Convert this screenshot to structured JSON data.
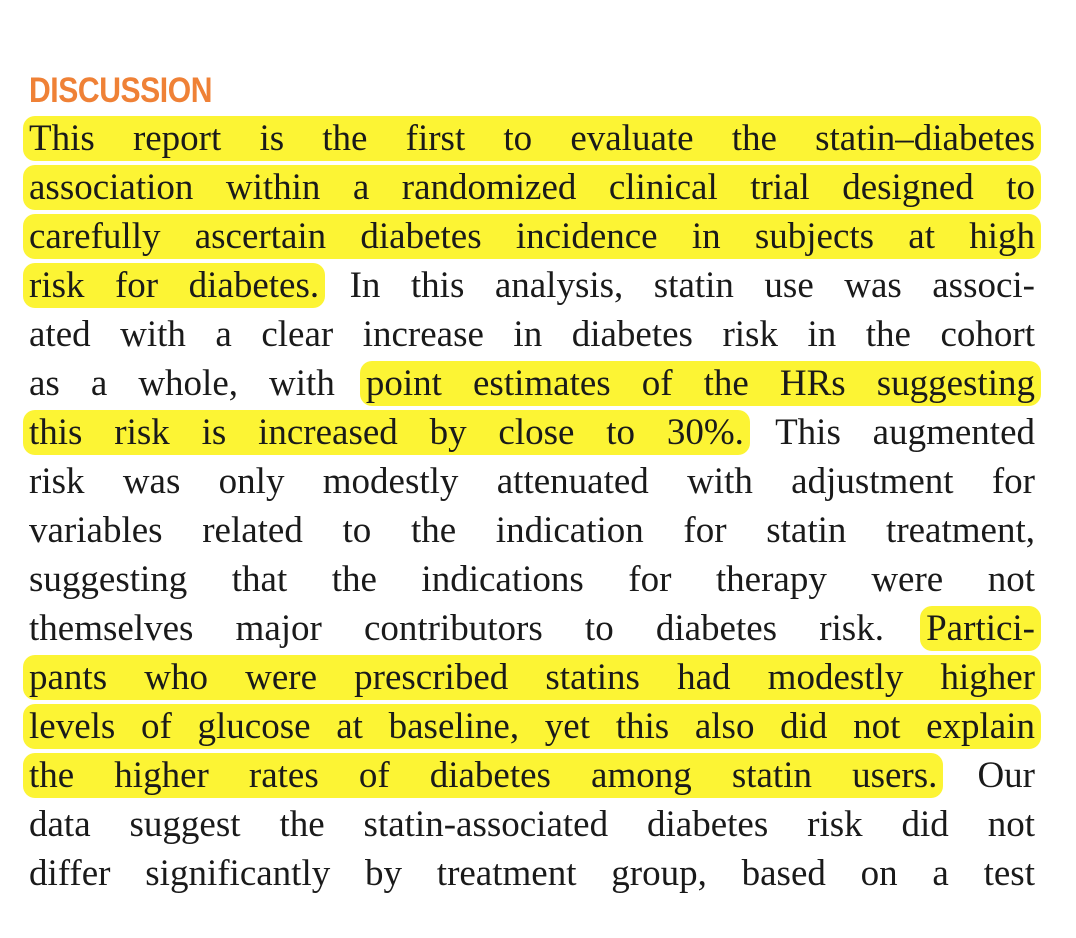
{
  "section": {
    "heading": "DISCUSSION"
  },
  "lines": [
    [
      {
        "t": "This report is the first to evaluate the statin–diabetes",
        "h": true
      }
    ],
    [
      {
        "t": "association within a randomized clinical trial designed to",
        "h": true
      }
    ],
    [
      {
        "t": "carefully ascertain diabetes incidence in subjects at high",
        "h": true
      }
    ],
    [
      {
        "t": "risk for diabetes.",
        "h": true
      },
      {
        "t": " In this analysis, statin use was associ-",
        "h": false
      }
    ],
    [
      {
        "t": "ated with a clear increase in diabetes risk in the cohort",
        "h": false
      }
    ],
    [
      {
        "t": "as a whole, with ",
        "h": false
      },
      {
        "t": "point estimates of the HRs suggesting",
        "h": true
      }
    ],
    [
      {
        "t": "this risk is increased by close to 30%.",
        "h": true
      },
      {
        "t": " This augmented",
        "h": false
      }
    ],
    [
      {
        "t": "risk was only modestly attenuated with adjustment for",
        "h": false
      }
    ],
    [
      {
        "t": "variables related to the indication for statin treatment,",
        "h": false
      }
    ],
    [
      {
        "t": "suggesting that the indications for therapy were not",
        "h": false
      }
    ],
    [
      {
        "t": "themselves major contributors to diabetes risk. ",
        "h": false
      },
      {
        "t": "Partici-",
        "h": true
      }
    ],
    [
      {
        "t": "pants who were prescribed statins had modestly higher",
        "h": true
      }
    ],
    [
      {
        "t": "levels of glucose at baseline, yet this also did not explain",
        "h": true
      }
    ],
    [
      {
        "t": "the higher rates of diabetes among statin users.",
        "h": true
      },
      {
        "t": " Our",
        "h": false
      }
    ],
    [
      {
        "t": "data suggest the statin-associated diabetes risk did not",
        "h": false
      }
    ],
    [
      {
        "t": "differ significantly by treatment group, based on a test",
        "h": false
      }
    ]
  ],
  "colors": {
    "heading": "#ef8136",
    "highlight": "#fcf434",
    "text": "#1a1a1a"
  }
}
